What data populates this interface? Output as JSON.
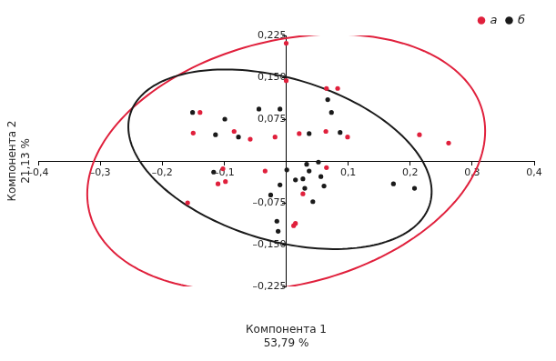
{
  "chart_data": {
    "type": "scatter",
    "x_label": "Компонента 1\n53,79 %",
    "y_label": "Компонента 2\n21,13 %",
    "xlim": [
      -0.4,
      0.4
    ],
    "ylim": [
      -0.225,
      0.225
    ],
    "xticks": [
      {
        "value": -0.4,
        "label": "–0,4"
      },
      {
        "value": -0.3,
        "label": "–0,3"
      },
      {
        "value": -0.2,
        "label": "–0,2"
      },
      {
        "value": -0.1,
        "label": "–0,1"
      },
      {
        "value": 0.1,
        "label": "0,1"
      },
      {
        "value": 0.2,
        "label": "0,2"
      },
      {
        "value": 0.3,
        "label": "0,3"
      },
      {
        "value": 0.4,
        "label": "0,4"
      }
    ],
    "yticks": [
      {
        "value": -0.225,
        "label": "–0,225"
      },
      {
        "value": -0.15,
        "label": "–0,150"
      },
      {
        "value": -0.075,
        "label": "–0,075"
      },
      {
        "value": 0.075,
        "label": "0,075"
      },
      {
        "value": 0.15,
        "label": "0,150"
      },
      {
        "value": 0.225,
        "label": "0,225"
      }
    ],
    "grid": false,
    "legend": "top-right",
    "series": [
      {
        "name": "а",
        "color": "#e0203c",
        "marker": "circle",
        "x": [
          0.0,
          0.0,
          0.065,
          0.083,
          -0.139,
          -0.15,
          -0.084,
          -0.058,
          -0.018,
          0.021,
          0.064,
          0.099,
          0.215,
          0.262,
          -0.102,
          -0.034,
          -0.11,
          -0.098,
          -0.159,
          0.027,
          0.015,
          0.012,
          0.065
        ],
        "y": [
          0.211,
          0.144,
          0.13,
          0.13,
          0.087,
          0.05,
          0.053,
          0.039,
          0.043,
          0.049,
          0.053,
          0.043,
          0.047,
          0.032,
          -0.014,
          -0.018,
          -0.041,
          -0.037,
          -0.075,
          -0.059,
          -0.112,
          -0.116,
          -0.012
        ],
        "ellipse": {
          "center": [
            0.0,
            -0.003
          ],
          "semi_axes": [
            0.33,
            0.217
          ],
          "angle": 18
        }
      },
      {
        "name": "б",
        "color": "#1a1a1a",
        "marker": "circle",
        "x": [
          -0.151,
          -0.099,
          -0.044,
          -0.01,
          0.067,
          0.073,
          -0.114,
          -0.077,
          0.037,
          0.087,
          -0.117,
          -0.01,
          0.001,
          0.033,
          0.037,
          0.052,
          0.015,
          0.027,
          0.056,
          0.03,
          0.061,
          0.043,
          -0.025,
          -0.015,
          -0.013,
          0.173,
          0.207
        ],
        "y": [
          0.087,
          0.075,
          0.093,
          0.093,
          0.11,
          0.087,
          0.047,
          0.043,
          0.049,
          0.051,
          -0.02,
          -0.043,
          -0.016,
          -0.006,
          -0.018,
          -0.002,
          -0.034,
          -0.032,
          -0.028,
          -0.049,
          -0.045,
          -0.073,
          -0.061,
          -0.108,
          -0.126,
          -0.041,
          -0.049
        ],
        "ellipse": {
          "center": [
            -0.01,
            0.003
          ],
          "semi_axes": [
            0.255,
            0.144
          ],
          "angle": -20
        }
      }
    ]
  }
}
